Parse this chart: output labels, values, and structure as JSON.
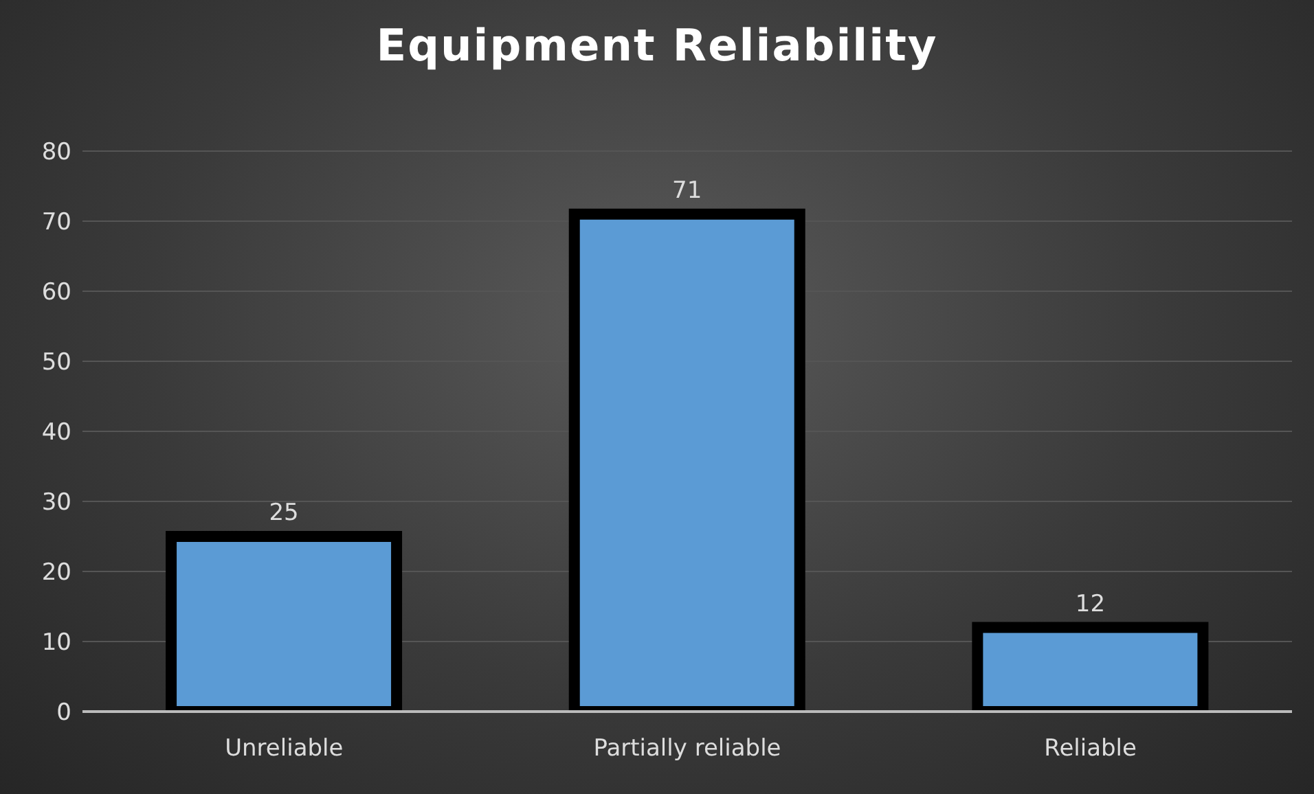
{
  "chart_data": {
    "type": "bar",
    "title": "Equipment Reliability",
    "categories": [
      "Unreliable",
      "Partially reliable",
      "Reliable"
    ],
    "values": [
      25,
      71,
      12
    ],
    "color": "#5b9bd5",
    "ylim": [
      0,
      80
    ],
    "yticks": [
      0,
      10,
      20,
      30,
      40,
      50,
      60,
      70,
      80
    ],
    "grid": "y",
    "data_labels": true,
    "legend": false
  }
}
